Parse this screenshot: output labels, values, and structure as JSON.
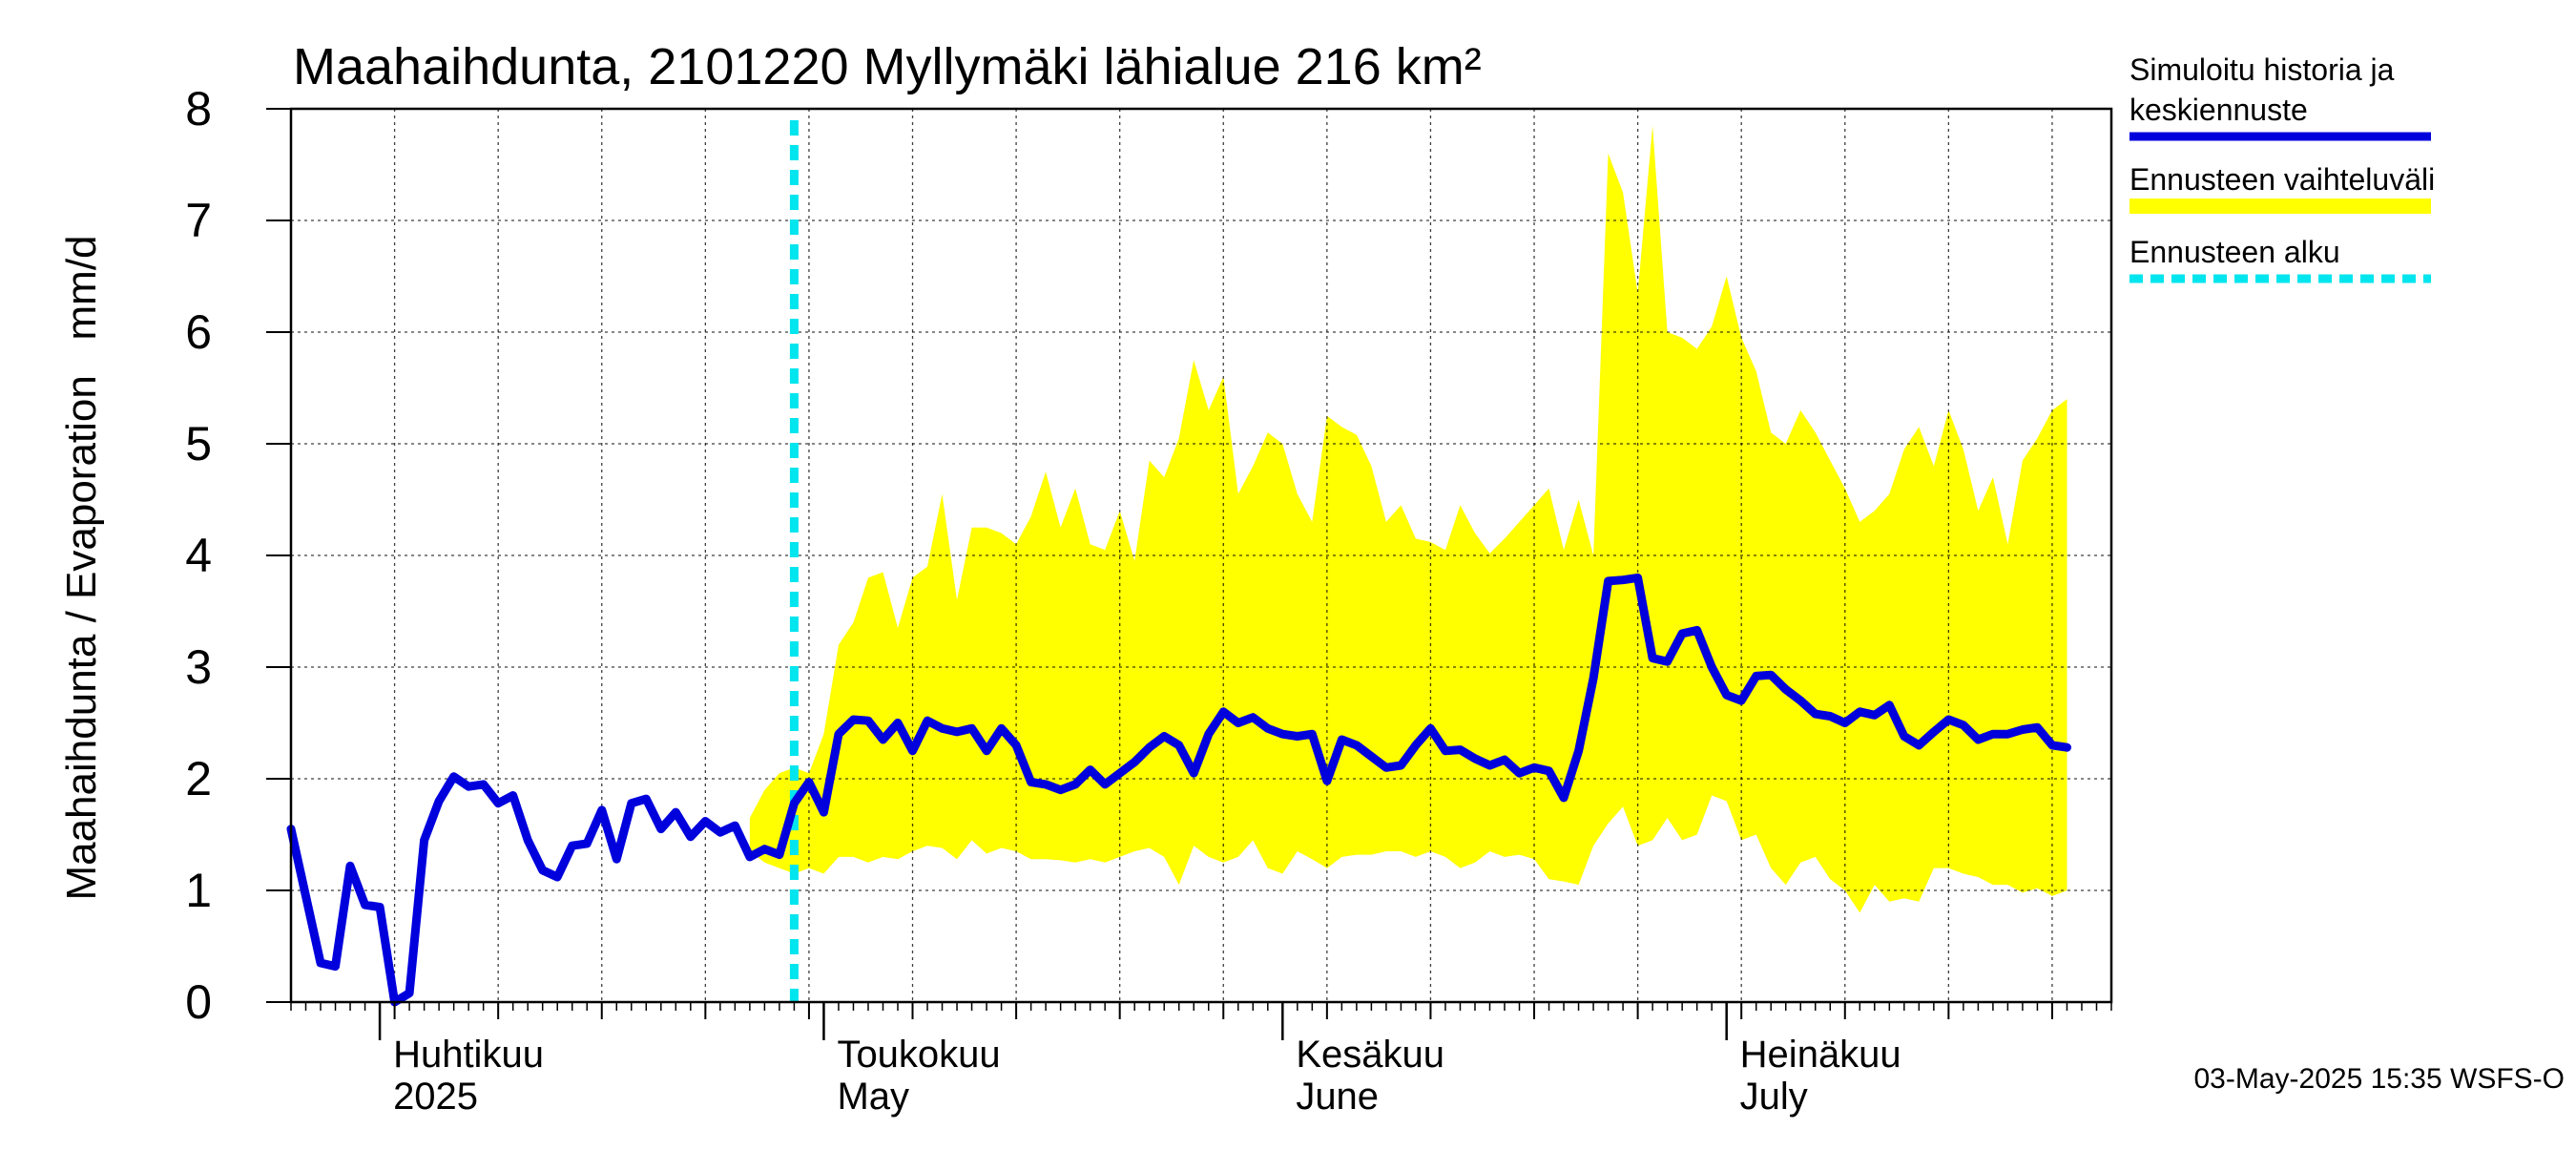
{
  "chart_data": {
    "type": "line",
    "title": "Maahaihdunta, 2101220 Myllymäki lähialue 216 km²",
    "ylabel": "Maahaihdunta / Evaporation   mm/d",
    "ylim": [
      0,
      8
    ],
    "yticks": [
      "0",
      "1",
      "2",
      "3",
      "4",
      "5",
      "6",
      "7",
      "8"
    ],
    "xlim": [
      "2025-03-26",
      "2025-07-27"
    ],
    "grid": true,
    "month_labels": [
      {
        "fi": "Huhtikuu",
        "en": "2025",
        "date": "2025-04-01"
      },
      {
        "fi": "Toukokuu",
        "en": "May",
        "date": "2025-05-01"
      },
      {
        "fi": "Kesäkuu",
        "en": "June",
        "date": "2025-06-01"
      },
      {
        "fi": "Heinäkuu",
        "en": "July",
        "date": "2025-07-01"
      }
    ],
    "forecast_start": "2025-04-29",
    "legend": [
      {
        "label": "Simuloitu historia ja keskiennuste",
        "color": "#0000dd",
        "style": "solid"
      },
      {
        "label": "Ennusteen vaihteluväli",
        "color": "#ffff00",
        "style": "band"
      },
      {
        "label": "Ennusteen alku",
        "color": "#00e5ee",
        "style": "dashed"
      }
    ],
    "series": [
      {
        "name": "Simuloitu historia ja keskiennuste",
        "color": "#0000dd",
        "points": [
          [
            "2025-03-26",
            1.55
          ],
          [
            "2025-03-27",
            0.95
          ],
          [
            "2025-03-28",
            0.35
          ],
          [
            "2025-03-29",
            0.32
          ],
          [
            "2025-03-30",
            1.22
          ],
          [
            "2025-03-31",
            0.87
          ],
          [
            "2025-04-01",
            0.85
          ],
          [
            "2025-04-02",
            0.0
          ],
          [
            "2025-04-03",
            0.08
          ],
          [
            "2025-04-04",
            1.45
          ],
          [
            "2025-04-05",
            1.8
          ],
          [
            "2025-04-06",
            2.02
          ],
          [
            "2025-04-07",
            1.93
          ],
          [
            "2025-04-08",
            1.95
          ],
          [
            "2025-04-09",
            1.78
          ],
          [
            "2025-04-10",
            1.85
          ],
          [
            "2025-04-11",
            1.45
          ],
          [
            "2025-04-12",
            1.18
          ],
          [
            "2025-04-13",
            1.12
          ],
          [
            "2025-04-14",
            1.4
          ],
          [
            "2025-04-15",
            1.42
          ],
          [
            "2025-04-16",
            1.72
          ],
          [
            "2025-04-17",
            1.28
          ],
          [
            "2025-04-18",
            1.78
          ],
          [
            "2025-04-19",
            1.82
          ],
          [
            "2025-04-20",
            1.55
          ],
          [
            "2025-04-21",
            1.7
          ],
          [
            "2025-04-22",
            1.48
          ],
          [
            "2025-04-23",
            1.62
          ],
          [
            "2025-04-24",
            1.52
          ],
          [
            "2025-04-25",
            1.58
          ],
          [
            "2025-04-26",
            1.3
          ],
          [
            "2025-04-27",
            1.37
          ],
          [
            "2025-04-28",
            1.32
          ],
          [
            "2025-04-29",
            1.78
          ],
          [
            "2025-04-30",
            1.97
          ],
          [
            "2025-05-01",
            1.7
          ],
          [
            "2025-05-02",
            2.4
          ],
          [
            "2025-05-03",
            2.53
          ],
          [
            "2025-05-04",
            2.52
          ],
          [
            "2025-05-05",
            2.35
          ],
          [
            "2025-05-06",
            2.5
          ],
          [
            "2025-05-07",
            2.25
          ],
          [
            "2025-05-08",
            2.52
          ],
          [
            "2025-05-09",
            2.45
          ],
          [
            "2025-05-10",
            2.42
          ],
          [
            "2025-05-11",
            2.45
          ],
          [
            "2025-05-12",
            2.25
          ],
          [
            "2025-05-13",
            2.45
          ],
          [
            "2025-05-14",
            2.3
          ],
          [
            "2025-05-15",
            1.97
          ],
          [
            "2025-05-16",
            1.95
          ],
          [
            "2025-05-17",
            1.9
          ],
          [
            "2025-05-18",
            1.95
          ],
          [
            "2025-05-19",
            2.08
          ],
          [
            "2025-05-20",
            1.95
          ],
          [
            "2025-05-21",
            2.05
          ],
          [
            "2025-05-22",
            2.15
          ],
          [
            "2025-05-23",
            2.28
          ],
          [
            "2025-05-24",
            2.38
          ],
          [
            "2025-05-25",
            2.3
          ],
          [
            "2025-05-26",
            2.05
          ],
          [
            "2025-05-27",
            2.4
          ],
          [
            "2025-05-28",
            2.6
          ],
          [
            "2025-05-29",
            2.5
          ],
          [
            "2025-05-30",
            2.55
          ],
          [
            "2025-05-31",
            2.45
          ],
          [
            "2025-06-01",
            2.4
          ],
          [
            "2025-06-02",
            2.38
          ],
          [
            "2025-06-03",
            2.4
          ],
          [
            "2025-06-04",
            1.98
          ],
          [
            "2025-06-05",
            2.35
          ],
          [
            "2025-06-06",
            2.3
          ],
          [
            "2025-06-07",
            2.2
          ],
          [
            "2025-06-08",
            2.1
          ],
          [
            "2025-06-09",
            2.12
          ],
          [
            "2025-06-10",
            2.3
          ],
          [
            "2025-06-11",
            2.45
          ],
          [
            "2025-06-12",
            2.25
          ],
          [
            "2025-06-13",
            2.26
          ],
          [
            "2025-06-14",
            2.18
          ],
          [
            "2025-06-15",
            2.12
          ],
          [
            "2025-06-16",
            2.17
          ],
          [
            "2025-06-17",
            2.05
          ],
          [
            "2025-06-18",
            2.1
          ],
          [
            "2025-06-19",
            2.07
          ],
          [
            "2025-06-20",
            1.83
          ],
          [
            "2025-06-21",
            2.25
          ],
          [
            "2025-06-22",
            2.9
          ],
          [
            "2025-06-23",
            3.77
          ],
          [
            "2025-06-24",
            3.78
          ],
          [
            "2025-06-25",
            3.8
          ],
          [
            "2025-06-26",
            3.08
          ],
          [
            "2025-06-27",
            3.05
          ],
          [
            "2025-06-28",
            3.3
          ],
          [
            "2025-06-29",
            3.33
          ],
          [
            "2025-06-30",
            3.0
          ],
          [
            "2025-07-01",
            2.75
          ],
          [
            "2025-07-02",
            2.7
          ],
          [
            "2025-07-03",
            2.92
          ],
          [
            "2025-07-04",
            2.93
          ],
          [
            "2025-07-05",
            2.8
          ],
          [
            "2025-07-06",
            2.7
          ],
          [
            "2025-07-07",
            2.58
          ],
          [
            "2025-07-08",
            2.56
          ],
          [
            "2025-07-09",
            2.5
          ],
          [
            "2025-07-10",
            2.6
          ],
          [
            "2025-07-11",
            2.57
          ],
          [
            "2025-07-12",
            2.66
          ],
          [
            "2025-07-13",
            2.38
          ],
          [
            "2025-07-14",
            2.3
          ],
          [
            "2025-07-15",
            2.42
          ],
          [
            "2025-07-16",
            2.53
          ],
          [
            "2025-07-17",
            2.48
          ],
          [
            "2025-07-18",
            2.35
          ],
          [
            "2025-07-19",
            2.4
          ],
          [
            "2025-07-20",
            2.4
          ],
          [
            "2025-07-21",
            2.44
          ],
          [
            "2025-07-22",
            2.46
          ],
          [
            "2025-07-23",
            2.3
          ],
          [
            "2025-07-24",
            2.28
          ]
        ]
      }
    ],
    "band": {
      "name": "Ennusteen vaihteluväli",
      "color": "#ffff00",
      "points": [
        [
          "2025-04-26",
          1.35,
          1.65
        ],
        [
          "2025-04-27",
          1.25,
          1.9
        ],
        [
          "2025-04-28",
          1.2,
          2.05
        ],
        [
          "2025-04-29",
          1.15,
          2.1
        ],
        [
          "2025-04-30",
          1.2,
          2.05
        ],
        [
          "2025-05-01",
          1.15,
          2.4
        ],
        [
          "2025-05-02",
          1.3,
          3.2
        ],
        [
          "2025-05-03",
          1.3,
          3.4
        ],
        [
          "2025-05-04",
          1.25,
          3.8
        ],
        [
          "2025-05-05",
          1.3,
          3.85
        ],
        [
          "2025-05-06",
          1.28,
          3.35
        ],
        [
          "2025-05-07",
          1.35,
          3.8
        ],
        [
          "2025-05-08",
          1.4,
          3.9
        ],
        [
          "2025-05-09",
          1.38,
          4.55
        ],
        [
          "2025-05-10",
          1.28,
          3.6
        ],
        [
          "2025-05-11",
          1.45,
          4.25
        ],
        [
          "2025-05-12",
          1.33,
          4.25
        ],
        [
          "2025-05-13",
          1.38,
          4.2
        ],
        [
          "2025-05-14",
          1.35,
          4.1
        ],
        [
          "2025-05-15",
          1.28,
          4.35
        ],
        [
          "2025-05-16",
          1.28,
          4.75
        ],
        [
          "2025-05-17",
          1.27,
          4.25
        ],
        [
          "2025-05-18",
          1.25,
          4.6
        ],
        [
          "2025-05-19",
          1.28,
          4.1
        ],
        [
          "2025-05-20",
          1.25,
          4.05
        ],
        [
          "2025-05-21",
          1.3,
          4.4
        ],
        [
          "2025-05-22",
          1.35,
          3.95
        ],
        [
          "2025-05-23",
          1.38,
          4.85
        ],
        [
          "2025-05-24",
          1.3,
          4.7
        ],
        [
          "2025-05-25",
          1.05,
          5.05
        ],
        [
          "2025-05-26",
          1.4,
          5.75
        ],
        [
          "2025-05-27",
          1.3,
          5.3
        ],
        [
          "2025-05-28",
          1.25,
          5.6
        ],
        [
          "2025-05-29",
          1.3,
          4.55
        ],
        [
          "2025-05-30",
          1.45,
          4.8
        ],
        [
          "2025-05-31",
          1.2,
          5.1
        ],
        [
          "2025-06-01",
          1.15,
          5.0
        ],
        [
          "2025-06-02",
          1.35,
          4.55
        ],
        [
          "2025-06-03",
          1.28,
          4.3
        ],
        [
          "2025-06-04",
          1.2,
          5.25
        ],
        [
          "2025-06-05",
          1.3,
          5.15
        ],
        [
          "2025-06-06",
          1.32,
          5.08
        ],
        [
          "2025-06-07",
          1.32,
          4.8
        ],
        [
          "2025-06-08",
          1.35,
          4.3
        ],
        [
          "2025-06-09",
          1.35,
          4.45
        ],
        [
          "2025-06-10",
          1.3,
          4.15
        ],
        [
          "2025-06-11",
          1.35,
          4.12
        ],
        [
          "2025-06-12",
          1.3,
          4.05
        ],
        [
          "2025-06-13",
          1.2,
          4.45
        ],
        [
          "2025-06-14",
          1.25,
          4.2
        ],
        [
          "2025-06-15",
          1.35,
          4.02
        ],
        [
          "2025-06-16",
          1.3,
          4.15
        ],
        [
          "2025-06-17",
          1.32,
          4.3
        ],
        [
          "2025-06-18",
          1.28,
          4.45
        ],
        [
          "2025-06-19",
          1.1,
          4.6
        ],
        [
          "2025-06-20",
          1.08,
          4.05
        ],
        [
          "2025-06-21",
          1.05,
          4.5
        ],
        [
          "2025-06-22",
          1.4,
          4.0
        ],
        [
          "2025-06-23",
          1.6,
          7.6
        ],
        [
          "2025-06-24",
          1.75,
          7.25
        ],
        [
          "2025-06-25",
          1.4,
          6.35
        ],
        [
          "2025-06-26",
          1.45,
          7.85
        ],
        [
          "2025-06-27",
          1.65,
          6.0
        ],
        [
          "2025-06-28",
          1.45,
          5.95
        ],
        [
          "2025-06-29",
          1.5,
          5.85
        ],
        [
          "2025-06-30",
          1.85,
          6.05
        ],
        [
          "2025-07-01",
          1.8,
          6.5
        ],
        [
          "2025-07-02",
          1.45,
          5.95
        ],
        [
          "2025-07-03",
          1.5,
          5.65
        ],
        [
          "2025-07-04",
          1.2,
          5.1
        ],
        [
          "2025-07-05",
          1.05,
          5.0
        ],
        [
          "2025-07-06",
          1.25,
          5.3
        ],
        [
          "2025-07-07",
          1.3,
          5.1
        ],
        [
          "2025-07-08",
          1.1,
          4.85
        ],
        [
          "2025-07-09",
          1.0,
          4.6
        ],
        [
          "2025-07-10",
          0.8,
          4.3
        ],
        [
          "2025-07-11",
          1.05,
          4.4
        ],
        [
          "2025-07-12",
          0.9,
          4.55
        ],
        [
          "2025-07-13",
          0.93,
          4.95
        ],
        [
          "2025-07-14",
          0.9,
          5.15
        ],
        [
          "2025-07-15",
          1.2,
          4.8
        ],
        [
          "2025-07-16",
          1.2,
          5.3
        ],
        [
          "2025-07-17",
          1.15,
          4.95
        ],
        [
          "2025-07-18",
          1.12,
          4.4
        ],
        [
          "2025-07-19",
          1.05,
          4.7
        ],
        [
          "2025-07-20",
          1.05,
          4.1
        ],
        [
          "2025-07-21",
          0.98,
          4.85
        ],
        [
          "2025-07-22",
          1.02,
          5.05
        ],
        [
          "2025-07-23",
          0.95,
          5.3
        ],
        [
          "2025-07-24",
          1.0,
          5.4
        ]
      ]
    }
  },
  "footer": "03-May-2025 15:35 WSFS-O"
}
